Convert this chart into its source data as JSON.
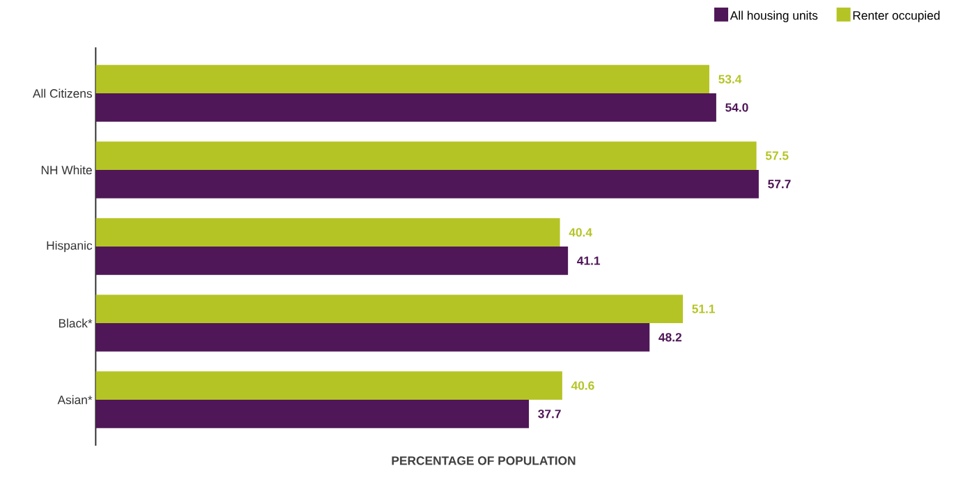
{
  "chart_data": {
    "type": "bar",
    "orientation": "horizontal",
    "xlabel": "PERCENTAGE OF POPULATION",
    "categories": [
      "All Citizens",
      "NH White",
      "Hispanic",
      "Black*",
      "Asian*"
    ],
    "legend": "top right",
    "series": [
      {
        "name": "All housing units",
        "color": "#4f1757",
        "values": [
          54.0,
          57.7,
          41.1,
          48.2,
          37.7
        ],
        "value_labels": [
          "54.0",
          "57.7",
          "41.1",
          "48.2",
          "37.7"
        ]
      },
      {
        "name": "Renter occupied",
        "color": "#b5c425",
        "values": [
          53.4,
          57.5,
          40.4,
          51.1,
          40.6
        ],
        "value_labels": [
          "53.4",
          "57.5",
          "40.4",
          "51.1",
          "40.6"
        ]
      }
    ]
  }
}
